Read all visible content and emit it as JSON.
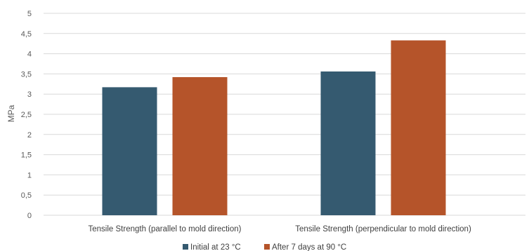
{
  "chart_data": {
    "type": "bar",
    "title": "",
    "xlabel": "",
    "ylabel": "MPa",
    "ylim": [
      0,
      5
    ],
    "yticks": [
      "0",
      "0,5",
      "1",
      "1,5",
      "2",
      "2,5",
      "3",
      "3,5",
      "4",
      "4,5",
      "5"
    ],
    "categories": [
      "Tensile Strength (parallel to mold direction)",
      "Tensile Strength (perpendicular to mold direction)"
    ],
    "series": [
      {
        "name": "Initial at 23 °C",
        "color": "#355a70",
        "values": [
          3.17,
          3.56
        ]
      },
      {
        "name": "After 7 days at 90 °C",
        "color": "#b5542a",
        "values": [
          3.42,
          4.33
        ]
      }
    ],
    "grid": true,
    "legend_position": "bottom"
  }
}
